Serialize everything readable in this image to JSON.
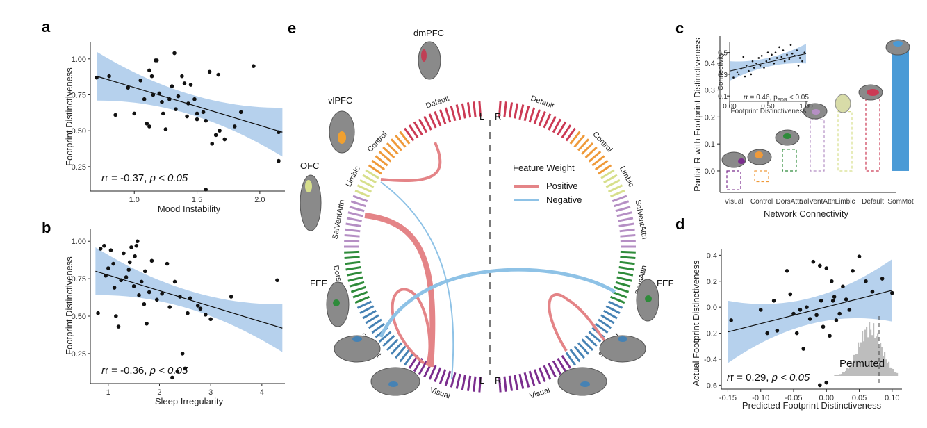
{
  "figure": {
    "panels": [
      "a",
      "b",
      "c",
      "d",
      "e"
    ]
  },
  "colors": {
    "band": "#a9c9ea",
    "positive": "#e48487",
    "negative": "#8ec2e6",
    "somMotBar": "#4a9ad6",
    "Visual": "#7b2d8e",
    "SomMot": "#4682b4",
    "DorsAttn": "#2e8b3a",
    "SalVentAttn": "#b58fc4",
    "Limbic": "#d7df8c",
    "Control": "#ef9a3a",
    "Default": "#cc3a54"
  },
  "panel_a": {
    "label": "a",
    "ylabel": "Footprint Distinctiveness",
    "xlabel": "Mood Instability",
    "xticks": [
      "1.0",
      "1.5",
      "2.0"
    ],
    "yticks": [
      "0.25",
      "0.50",
      "0.75",
      "1.00"
    ],
    "stat_r": "r = -0.37, ",
    "stat_p": "p < 0.05"
  },
  "panel_b": {
    "label": "b",
    "ylabel": "Footprint Distinctiveness",
    "xlabel": "Sleep Irregularity",
    "xticks": [
      "1",
      "2",
      "3",
      "4"
    ],
    "yticks": [
      "0.25",
      "0.50",
      "0.75",
      "1.00"
    ],
    "stat_r": "r = -0.36, ",
    "stat_p": "p < 0.05"
  },
  "panel_c": {
    "label": "c",
    "ylabel": "Partial R with Footprint Distinctiveness",
    "xlabel": "Network Connectivity",
    "yticks": [
      "0.0",
      "0.1",
      "0.2",
      "0.3",
      "0.4"
    ],
    "inset": {
      "ylabel": "Connectivity",
      "xlabel": "Footprint Distinctiveness",
      "stat": "r = 0.46, p",
      "stat_sub": "FDR",
      "stat_end": " < 0.05",
      "xticks": [
        "0.00",
        "0.50",
        "1.00"
      ],
      "yticks": [
        "0.1",
        "0.3",
        "0.5"
      ]
    }
  },
  "panel_d": {
    "label": "d",
    "ylabel": "Actual Footprint Distinctiveness",
    "xlabel": "Predicted Footprint Distinctiveness",
    "xticks": [
      "-0.15",
      "-0.10",
      "-0.05",
      "0.00",
      "0.05",
      "0.10"
    ],
    "yticks": [
      "-0.6",
      "-0.4",
      "-0.2",
      "0.0",
      "0.2",
      "0.4"
    ],
    "stat_r": "r = 0.29, ",
    "stat_p": "p < 0.05",
    "permuted_label": "Permuted"
  },
  "panel_e": {
    "label": "e",
    "left_marker": "L",
    "right_marker": "R",
    "legend_title": "Feature Weight",
    "legend_positive": "Positive",
    "legend_negative": "Negative",
    "brains": [
      "dmPFC",
      "vlPFC",
      "OFC",
      "FEF",
      "FEF"
    ]
  },
  "chart_data": [
    {
      "panel": "a",
      "type": "scatter",
      "xlabel": "Mood Instability",
      "ylabel": "Footprint Distinctiveness",
      "xlim": [
        0.65,
        2.2
      ],
      "ylim": [
        0.08,
        1.12
      ],
      "points": [
        [
          0.7,
          0.87
        ],
        [
          0.8,
          0.88
        ],
        [
          0.85,
          0.61
        ],
        [
          0.95,
          0.8
        ],
        [
          1.0,
          0.62
        ],
        [
          1.05,
          0.85
        ],
        [
          1.08,
          0.72
        ],
        [
          1.1,
          0.55
        ],
        [
          1.12,
          0.92
        ],
        [
          1.12,
          0.53
        ],
        [
          1.14,
          0.88
        ],
        [
          1.15,
          0.75
        ],
        [
          1.17,
          0.99
        ],
        [
          1.18,
          0.99
        ],
        [
          1.2,
          0.76
        ],
        [
          1.22,
          0.7
        ],
        [
          1.23,
          0.62
        ],
        [
          1.25,
          0.51
        ],
        [
          1.28,
          0.72
        ],
        [
          1.3,
          0.81
        ],
        [
          1.32,
          1.04
        ],
        [
          1.33,
          0.65
        ],
        [
          1.35,
          0.74
        ],
        [
          1.38,
          0.88
        ],
        [
          1.4,
          0.83
        ],
        [
          1.42,
          0.6
        ],
        [
          1.43,
          0.69
        ],
        [
          1.45,
          0.82
        ],
        [
          1.48,
          0.72
        ],
        [
          1.5,
          0.58
        ],
        [
          1.5,
          0.62
        ],
        [
          1.55,
          0.63
        ],
        [
          1.57,
          0.57
        ],
        [
          1.6,
          0.91
        ],
        [
          1.62,
          0.41
        ],
        [
          1.65,
          0.47
        ],
        [
          1.67,
          0.89
        ],
        [
          1.68,
          0.5
        ],
        [
          1.72,
          0.44
        ],
        [
          1.8,
          0.53
        ],
        [
          1.85,
          0.63
        ],
        [
          1.95,
          0.95
        ],
        [
          2.15,
          0.49
        ],
        [
          2.15,
          0.29
        ],
        [
          1.57,
          0.09
        ]
      ],
      "fit": {
        "x": [
          0.7,
          2.18
        ],
        "y": [
          0.88,
          0.49
        ]
      },
      "r": -0.37
    },
    {
      "panel": "b",
      "type": "scatter",
      "xlabel": "Sleep Irregularity",
      "ylabel": "Footprint Distinctiveness",
      "xlim": [
        0.65,
        4.45
      ],
      "ylim": [
        0.05,
        1.08
      ],
      "points": [
        [
          0.8,
          0.52
        ],
        [
          0.85,
          0.95
        ],
        [
          0.92,
          0.97
        ],
        [
          0.95,
          0.77
        ],
        [
          1.0,
          0.82
        ],
        [
          1.05,
          0.94
        ],
        [
          1.1,
          0.85
        ],
        [
          1.12,
          0.69
        ],
        [
          1.15,
          0.5
        ],
        [
          1.2,
          0.43
        ],
        [
          1.25,
          0.74
        ],
        [
          1.3,
          0.92
        ],
        [
          1.35,
          0.76
        ],
        [
          1.4,
          0.81
        ],
        [
          1.42,
          0.86
        ],
        [
          1.45,
          0.96
        ],
        [
          1.5,
          0.7
        ],
        [
          1.52,
          0.9
        ],
        [
          1.55,
          0.97
        ],
        [
          1.57,
          1.0
        ],
        [
          1.6,
          0.64
        ],
        [
          1.65,
          0.73
        ],
        [
          1.7,
          0.58
        ],
        [
          1.72,
          0.8
        ],
        [
          1.75,
          0.45
        ],
        [
          1.8,
          0.66
        ],
        [
          1.85,
          0.87
        ],
        [
          1.95,
          0.61
        ],
        [
          2.05,
          0.65
        ],
        [
          2.15,
          0.85
        ],
        [
          2.2,
          0.56
        ],
        [
          2.25,
          0.09
        ],
        [
          2.3,
          0.73
        ],
        [
          2.35,
          0.13
        ],
        [
          2.4,
          0.63
        ],
        [
          2.45,
          0.25
        ],
        [
          2.5,
          0.15
        ],
        [
          2.55,
          0.52
        ],
        [
          2.6,
          0.62
        ],
        [
          2.75,
          0.57
        ],
        [
          2.8,
          0.55
        ],
        [
          2.9,
          0.51
        ],
        [
          3.0,
          0.48
        ],
        [
          3.4,
          0.63
        ],
        [
          4.3,
          0.74
        ]
      ],
      "fit": {
        "x": [
          0.75,
          4.4
        ],
        "y": [
          0.8,
          0.42
        ]
      },
      "r": -0.36
    },
    {
      "panel": "c",
      "type": "bar",
      "categories": [
        "Visual",
        "Control",
        "DorsAttn",
        "SalVentAttn",
        "Limbic",
        "Default",
        "SomMot"
      ],
      "values": [
        -0.07,
        -0.04,
        0.08,
        0.19,
        0.22,
        0.27,
        0.46
      ],
      "xlabel": "Network Connectivity",
      "ylabel": "Partial R with Footprint Distinctiveness",
      "ylim": [
        -0.08,
        0.5
      ],
      "significant": [
        "SomMot"
      ],
      "inset": {
        "type": "scatter",
        "xlabel": "Footprint Distinctiveness",
        "ylabel": "Connectivity",
        "r": 0.46,
        "xlim": [
          0,
          1
        ],
        "ylim": [
          0.05,
          0.6
        ],
        "points": [
          [
            0.05,
            0.27
          ],
          [
            0.1,
            0.32
          ],
          [
            0.12,
            0.3
          ],
          [
            0.15,
            0.35
          ],
          [
            0.18,
            0.46
          ],
          [
            0.2,
            0.28
          ],
          [
            0.22,
            0.38
          ],
          [
            0.25,
            0.33
          ],
          [
            0.28,
            0.3
          ],
          [
            0.3,
            0.42
          ],
          [
            0.32,
            0.36
          ],
          [
            0.35,
            0.4
          ],
          [
            0.38,
            0.45
          ],
          [
            0.4,
            0.38
          ],
          [
            0.42,
            0.47
          ],
          [
            0.45,
            0.36
          ],
          [
            0.48,
            0.42
          ],
          [
            0.5,
            0.5
          ],
          [
            0.52,
            0.44
          ],
          [
            0.55,
            0.48
          ],
          [
            0.58,
            0.4
          ],
          [
            0.6,
            0.5
          ],
          [
            0.62,
            0.45
          ],
          [
            0.65,
            0.55
          ],
          [
            0.68,
            0.46
          ],
          [
            0.7,
            0.52
          ],
          [
            0.72,
            0.42
          ],
          [
            0.75,
            0.48
          ],
          [
            0.78,
            0.44
          ],
          [
            0.8,
            0.57
          ],
          [
            0.82,
            0.49
          ],
          [
            0.85,
            0.47
          ],
          [
            0.88,
            0.52
          ],
          [
            0.9,
            0.38
          ],
          [
            0.92,
            0.45
          ],
          [
            0.95,
            0.42
          ],
          [
            0.98,
            0.5
          ]
        ],
        "fit": {
          "x": [
            0.0,
            1.0
          ],
          "y": [
            0.33,
            0.49
          ]
        }
      }
    },
    {
      "panel": "d",
      "type": "scatter",
      "xlabel": "Predicted Footprint Distinctiveness",
      "ylabel": "Actual Footprint Distinctiveness",
      "xlim": [
        -0.16,
        0.115
      ],
      "ylim": [
        -0.63,
        0.45
      ],
      "points": [
        [
          -0.145,
          -0.1
        ],
        [
          -0.1,
          -0.02
        ],
        [
          -0.09,
          -0.2
        ],
        [
          -0.08,
          0.05
        ],
        [
          -0.075,
          -0.18
        ],
        [
          -0.06,
          0.28
        ],
        [
          -0.055,
          0.1
        ],
        [
          -0.05,
          -0.05
        ],
        [
          -0.045,
          -0.2
        ],
        [
          -0.04,
          -0.02
        ],
        [
          -0.035,
          -0.32
        ],
        [
          -0.03,
          0.0
        ],
        [
          -0.025,
          -0.09
        ],
        [
          -0.02,
          0.35
        ],
        [
          -0.015,
          -0.06
        ],
        [
          -0.01,
          0.32
        ],
        [
          -0.008,
          0.05
        ],
        [
          -0.005,
          -0.15
        ],
        [
          0.0,
          0.3
        ],
        [
          0.005,
          -0.22
        ],
        [
          0.008,
          0.2
        ],
        [
          0.01,
          0.05
        ],
        [
          0.012,
          0.08
        ],
        [
          0.015,
          -0.1
        ],
        [
          0.02,
          -0.05
        ],
        [
          0.025,
          0.16
        ],
        [
          0.03,
          0.06
        ],
        [
          0.035,
          -0.02
        ],
        [
          0.04,
          0.28
        ],
        [
          0.05,
          0.39
        ],
        [
          0.06,
          0.2
        ],
        [
          0.07,
          0.12
        ],
        [
          0.085,
          0.22
        ],
        [
          0.1,
          0.11
        ],
        [
          0.0,
          -0.58
        ],
        [
          -0.01,
          -0.6
        ]
      ],
      "fit": {
        "x": [
          -0.15,
          0.1
        ],
        "y": [
          -0.19,
          0.13
        ]
      },
      "r": 0.29,
      "permutation_observed": 0.29
    },
    {
      "panel": "e",
      "type": "chord",
      "segments_left": [
        "Default",
        "Control",
        "Limbic",
        "SalVentAttn",
        "DorsAttn",
        "SomMot",
        "Visual"
      ],
      "segments_right": [
        "Default",
        "Control",
        "Limbic",
        "SalVentAttn",
        "DorsAttn",
        "SomMot",
        "Visual"
      ],
      "legend": [
        "Positive",
        "Negative"
      ]
    }
  ]
}
